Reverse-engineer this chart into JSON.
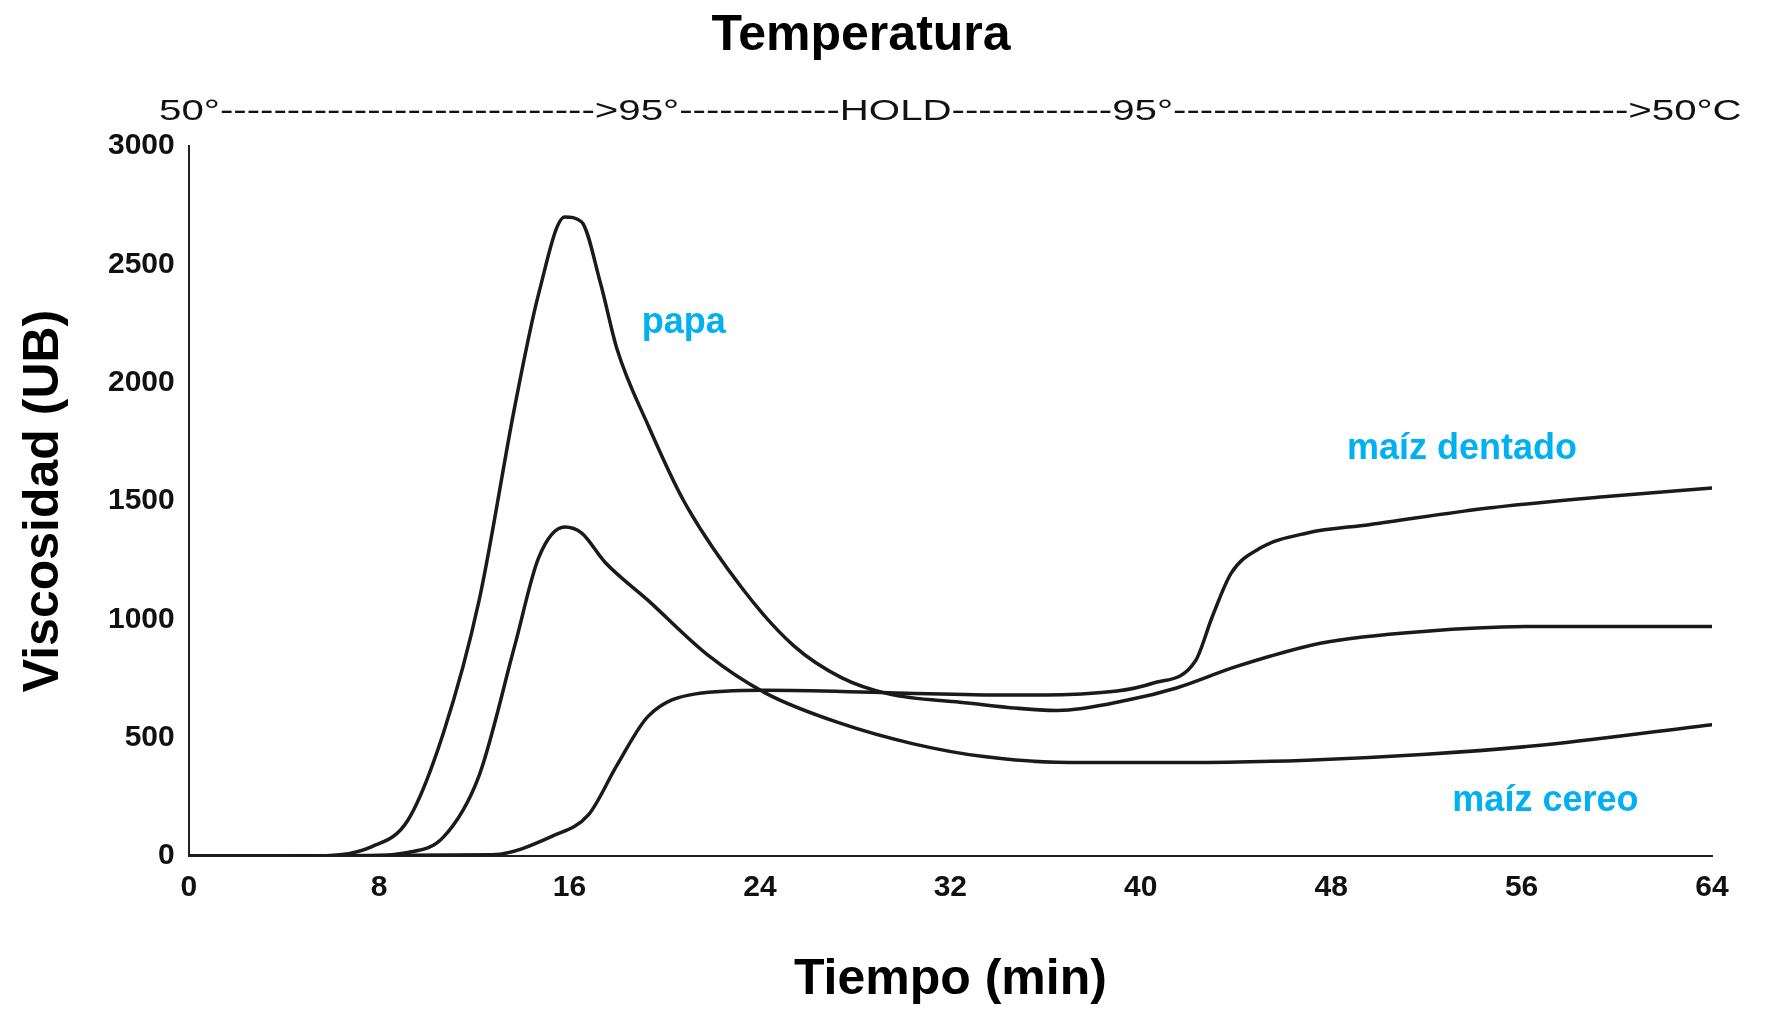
{
  "chart_data": {
    "type": "line",
    "title": "Temperatura",
    "subtitle": "50°---------------------------->95°------------HOLD------------95°---------------------------------->50°C",
    "xlabel": "Tiempo (min)",
    "ylabel": "Viscosidad (UB)",
    "xlim": [
      0,
      64
    ],
    "xticks": [
      0,
      8,
      16,
      24,
      32,
      40,
      48,
      56,
      64
    ],
    "ylim": [
      0,
      3000
    ],
    "yticks": [
      0,
      500,
      1000,
      1500,
      2000,
      2500,
      3000
    ],
    "grid": false,
    "legend": false,
    "marker": "none",
    "line_style": "solid",
    "series": [
      {
        "name": "papa",
        "color": "#1a1a1a",
        "x": [
          0,
          5,
          7.7,
          9.2,
          10.7,
          12.2,
          13.7,
          14.7,
          15.8,
          16.5,
          17.3,
          18,
          19.3,
          20.8,
          23.3,
          25.4,
          27.4,
          29.4,
          32.4,
          36.5,
          39.5,
          41.5,
          44,
          47.6,
          52,
          57,
          64
        ],
        "values": [
          0,
          0,
          40,
          150,
          520,
          1080,
          1900,
          2375,
          2700,
          2680,
          2420,
          2140,
          1820,
          1500,
          1125,
          890,
          755,
          685,
          650,
          615,
          660,
          710,
          800,
          900,
          950,
          970,
          970
        ]
      },
      {
        "name": "maíz dentado",
        "color": "#1a1a1a",
        "x": [
          0,
          12.7,
          15.3,
          16.8,
          18,
          19.3,
          21.3,
          24.3,
          29.4,
          34.4,
          37.5,
          40.5,
          42.3,
          43,
          43.8,
          45,
          47,
          49.6,
          54.6,
          59.7,
          64
        ],
        "values": [
          0,
          5,
          85,
          175,
          385,
          590,
          685,
          700,
          690,
          680,
          685,
          730,
          825,
          1010,
          1195,
          1300,
          1365,
          1400,
          1470,
          1520,
          1555
        ]
      },
      {
        "name": "maíz cereo",
        "color": "#1a1a1a",
        "x": [
          0,
          7,
          9.2,
          10.7,
          12.2,
          13.7,
          14.7,
          15.8,
          16.5,
          17.5,
          19.3,
          21.8,
          24.3,
          27.4,
          30.4,
          33.4,
          37,
          42,
          47,
          52,
          57,
          64
        ],
        "values": [
          0,
          0,
          15,
          80,
          340,
          890,
          1260,
          1390,
          1365,
          1240,
          1080,
          850,
          685,
          560,
          475,
          420,
          395,
          395,
          405,
          430,
          470,
          555
        ]
      }
    ]
  }
}
